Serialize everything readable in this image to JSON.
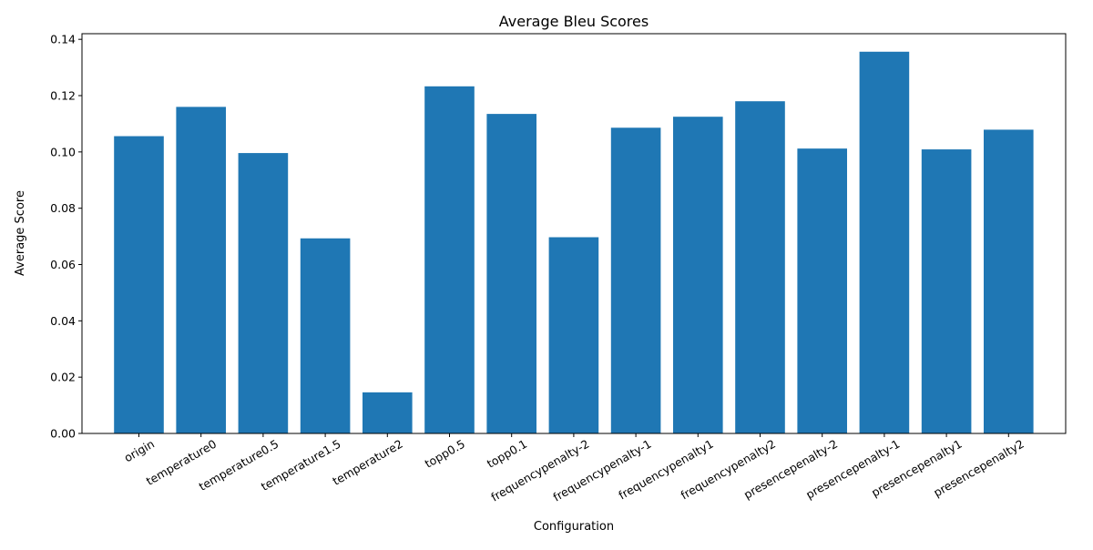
{
  "chart_data": {
    "type": "bar",
    "title": "Average Bleu Scores",
    "xlabel": "Configuration",
    "ylabel": "Average Score",
    "ylim": [
      0,
      0.142
    ],
    "yticks": [
      "0.00",
      "0.02",
      "0.04",
      "0.06",
      "0.08",
      "0.10",
      "0.12",
      "0.14"
    ],
    "grid": false,
    "bar_color": "#1f77b4",
    "categories": [
      "origin",
      "temperature0",
      "temperature0.5",
      "temperature1.5",
      "temperature2",
      "topp0.5",
      "topp0.1",
      "frequencypenalty-2",
      "frequencypenalty-1",
      "frequencypenalty1",
      "frequencypenalty2",
      "presencepenalty-2",
      "presencepenalty-1",
      "presencepenalty1",
      "presencepenalty2"
    ],
    "values": [
      0.1056,
      0.116,
      0.0996,
      0.0693,
      0.0146,
      0.1233,
      0.1135,
      0.0697,
      0.1086,
      0.1125,
      0.118,
      0.1012,
      0.1356,
      0.1009,
      0.1079
    ]
  }
}
